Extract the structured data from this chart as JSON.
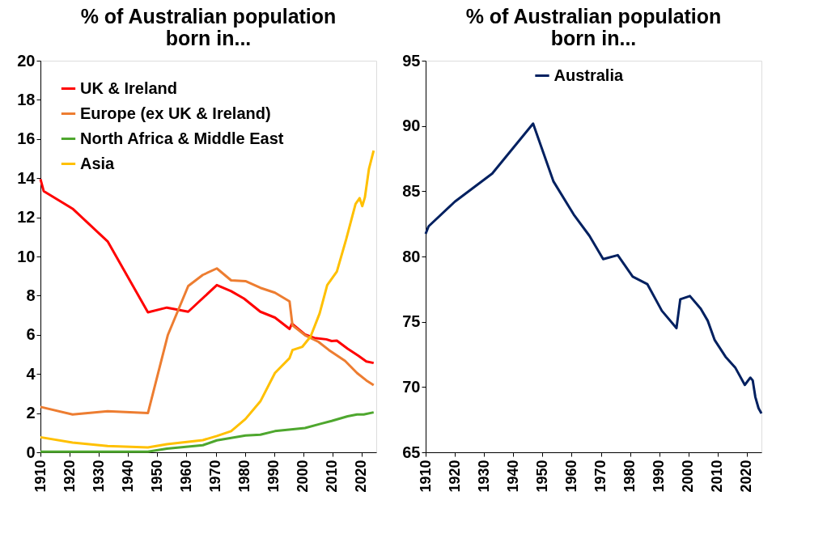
{
  "chart_data": [
    {
      "type": "line",
      "title": "% of Australian population\nborn in...",
      "xlim": [
        1910,
        2025
      ],
      "xticks": [
        1910,
        1920,
        1930,
        1940,
        1950,
        1960,
        1970,
        1980,
        1990,
        2000,
        2010,
        2020
      ],
      "ylim": [
        0,
        20
      ],
      "yticks": [
        0,
        2,
        4,
        6,
        8,
        10,
        12,
        14,
        16,
        18,
        20
      ],
      "grid": false,
      "legend": "top left",
      "line_style": "solid",
      "marker": "none",
      "series": [
        {
          "name": "UK & Ireland",
          "color": "#ff0000",
          "x": [
            1910,
            1911.1,
            1921,
            1933,
            1946.8,
            1953.3,
            1960.6,
            1970.4,
            1975.3,
            1979.7,
            1985.3,
            1990.3,
            1995.3,
            1996.1,
            2000.6,
            2003.8,
            2007.9,
            2009.7,
            2011.5,
            2015.2,
            2018.8,
            2021.6,
            2024.1
          ],
          "values": [
            13.95,
            13.34,
            12.44,
            10.77,
            7.15,
            7.39,
            7.18,
            8.54,
            8.23,
            7.85,
            7.18,
            6.88,
            6.3,
            6.57,
            6.02,
            5.84,
            5.77,
            5.68,
            5.7,
            5.29,
            4.94,
            4.64,
            4.56
          ]
        },
        {
          "name": "Europe (ex UK & Ireland)",
          "color": "#ed7d31",
          "x": [
            1910,
            1921,
            1933,
            1946.8,
            1953.6,
            1960.6,
            1965.6,
            1970.4,
            1975.3,
            1980.2,
            1985.3,
            1990.3,
            1995.3,
            1996.3,
            2000.6,
            2005.2,
            2008.8,
            2014.3,
            2018.4,
            2021.6,
            2024.1
          ],
          "values": [
            2.32,
            1.93,
            2.1,
            2.0,
            5.98,
            8.49,
            9.06,
            9.39,
            8.78,
            8.74,
            8.4,
            8.15,
            7.71,
            6.48,
            5.98,
            5.64,
            5.22,
            4.67,
            4.05,
            3.67,
            3.43
          ]
        },
        {
          "name": "North Africa & Middle East",
          "color": "#4ea72e",
          "x": [
            1910,
            1946.8,
            1953.3,
            1965.6,
            1970.4,
            1980.2,
            1985.3,
            1990.3,
            2000.6,
            2006.1,
            2009.7,
            2015.2,
            2018.4,
            2020.7,
            2024.1
          ],
          "values": [
            0.03,
            0.03,
            0.19,
            0.36,
            0.61,
            0.86,
            0.9,
            1.08,
            1.24,
            1.46,
            1.6,
            1.84,
            1.93,
            1.93,
            2.04
          ]
        },
        {
          "name": "Asia",
          "color": "#ffc000",
          "x": [
            1910,
            1921,
            1933,
            1946.8,
            1953.3,
            1965.6,
            1970.4,
            1975.3,
            1980.2,
            1985.3,
            1990.3,
            1995.3,
            1996.3,
            1999.7,
            2002.5,
            2005.6,
            2008.2,
            2011.5,
            2014.7,
            2017.9,
            2019.3,
            2020.2,
            2021.1,
            2022.5,
            2024.1
          ],
          "values": [
            0.77,
            0.5,
            0.32,
            0.25,
            0.41,
            0.62,
            0.83,
            1.08,
            1.7,
            2.6,
            4.05,
            4.81,
            5.22,
            5.39,
            5.91,
            7.09,
            8.54,
            9.23,
            10.88,
            12.68,
            12.98,
            12.57,
            13.02,
            14.48,
            15.41
          ]
        }
      ]
    },
    {
      "type": "line",
      "title": "% of Australian population\nborn in...",
      "xlim": [
        1910,
        2025
      ],
      "xticks": [
        1910,
        1920,
        1930,
        1940,
        1950,
        1960,
        1970,
        1980,
        1990,
        2000,
        2010,
        2020
      ],
      "ylim": [
        65,
        95
      ],
      "yticks": [
        65,
        70,
        75,
        80,
        85,
        90,
        95
      ],
      "grid": false,
      "legend": "top",
      "line_style": "solid",
      "marker": "none",
      "series": [
        {
          "name": "Australia",
          "color": "#002060",
          "x": [
            1910,
            1911,
            1920,
            1932.8,
            1946.8,
            1953.8,
            1960.7,
            1966.1,
            1970.8,
            1975.8,
            1980.9,
            1985.9,
            1990.9,
            1995.9,
            1997.2,
            2000.5,
            2004.2,
            2006.6,
            2009,
            2012.7,
            2016,
            2019.3,
            2021.2,
            2022,
            2022.9,
            2024,
            2025
          ],
          "values": [
            81.74,
            82.31,
            84.2,
            86.35,
            90.18,
            85.74,
            83.22,
            81.58,
            79.8,
            80.1,
            78.46,
            77.89,
            75.84,
            74.51,
            76.72,
            76.97,
            76.0,
            75.08,
            73.59,
            72.32,
            71.5,
            70.16,
            70.72,
            70.51,
            69.24,
            68.38,
            67.97
          ]
        }
      ]
    }
  ]
}
